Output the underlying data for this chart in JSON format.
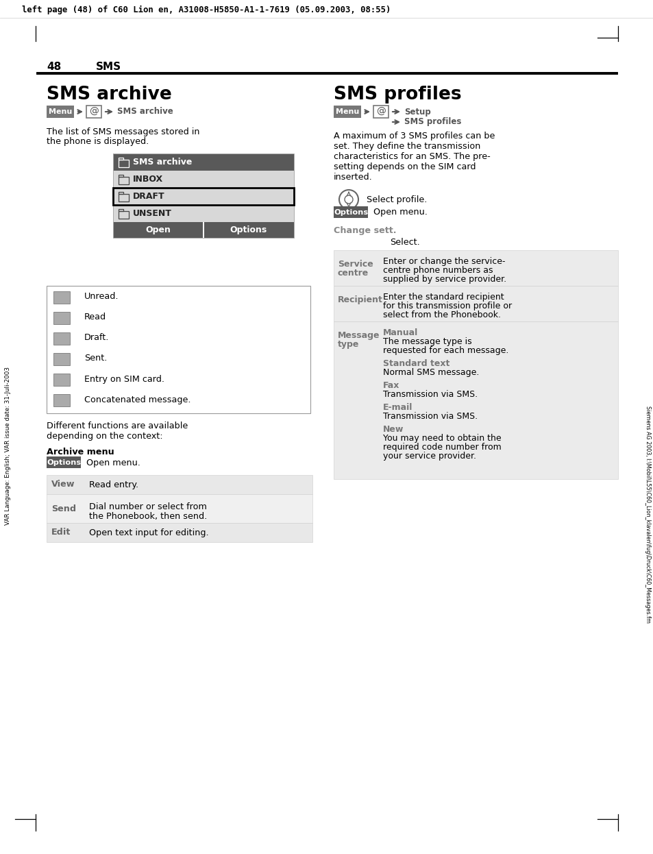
{
  "header": "left page (48) of C60 Lion en, A31008-H5850-A1-1-7619 (05.09.2003, 08:55)",
  "page_num": "48",
  "section": "SMS",
  "left_title": "SMS archive",
  "right_title": "SMS profiles",
  "dark_gray": "#555555",
  "mid_gray": "#888888",
  "light_gray": "#d8d8d8",
  "table_bg": "#e8e8e8",
  "white": "#ffffff",
  "black": "#000000",
  "sidebar_left": "VAR Language: English; VAR issue date: 31-Juli-2003",
  "sidebar_right": "Siemens AG 2003, I:\\Mobil\\L55\\C60_Lion_klavalen\\fug\\Druck\\C60_Messages.fm",
  "archive_items": [
    "SMS archive",
    "INBOX",
    "DRAFT",
    "UNSENT"
  ],
  "icon_labels": [
    "Unread.",
    "Read",
    "Draft.",
    "Sent.",
    "Entry on SIM card.",
    "Concatenated message."
  ],
  "left_table": [
    {
      "label": "View",
      "lines": [
        "Read entry."
      ],
      "shade": true
    },
    {
      "label": "Send",
      "lines": [
        "Dial number or select from",
        "the Phonebook, then send."
      ],
      "shade": false
    },
    {
      "label": "Edit",
      "lines": [
        "Open text input for editing."
      ],
      "shade": true
    }
  ],
  "right_desc": [
    "A maximum of 3 SMS profiles can be",
    "set. They define the transmission",
    "characteristics for an SMS. The pre-",
    "setting depends on the SIM card",
    "inserted."
  ],
  "right_table_rows": [
    {
      "label1": "Service",
      "label2": "centre",
      "content": [
        {
          "text": "Enter or change the service-",
          "bold": false
        },
        {
          "text": "centre phone numbers as",
          "bold": false
        },
        {
          "text": "supplied by service provider.",
          "bold": false
        }
      ]
    },
    {
      "label1": "Recipient",
      "label2": "",
      "content": [
        {
          "text": "Enter the standard recipient",
          "bold": false
        },
        {
          "text": "for this transmission profile or",
          "bold": false
        },
        {
          "text": "select from the Phonebook.",
          "bold": false
        }
      ]
    },
    {
      "label1": "Message",
      "label2": "type",
      "content": [
        {
          "text": "Manual",
          "bold": true
        },
        {
          "text": "The message type is",
          "bold": false
        },
        {
          "text": "requested for each message.",
          "bold": false
        },
        {
          "text": "Standard text",
          "bold": true
        },
        {
          "text": "Normal SMS message.",
          "bold": false
        },
        {
          "text": "Fax",
          "bold": true
        },
        {
          "text": "Transmission via SMS.",
          "bold": false
        },
        {
          "text": "E-mail",
          "bold": true
        },
        {
          "text": "Transmission via SMS.",
          "bold": false
        },
        {
          "text": "New",
          "bold": true
        },
        {
          "text": "You may need to obtain the",
          "bold": false
        },
        {
          "text": "required code number from",
          "bold": false
        },
        {
          "text": "your service provider.",
          "bold": false
        }
      ]
    }
  ]
}
